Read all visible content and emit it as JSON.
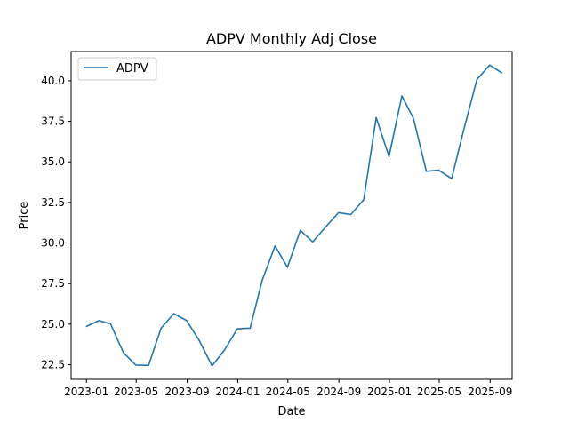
{
  "chart_data": {
    "type": "line",
    "title": "ADPV Monthly Adj Close",
    "xlabel": "Date",
    "ylabel": "Price",
    "legend_position": "top-left",
    "grid": false,
    "line_color": "#1f77b4",
    "x_ticks": [
      "2023-01",
      "2023-05",
      "2023-09",
      "2024-01",
      "2024-05",
      "2024-09",
      "2025-01",
      "2025-05",
      "2025-09"
    ],
    "y_ticks": [
      "22.5",
      "25.0",
      "27.5",
      "30.0",
      "32.5",
      "35.0",
      "37.5",
      "40.0"
    ],
    "ylim": [
      21.6,
      41.8
    ],
    "xlim": [
      "2022-11-25",
      "2025-10-24"
    ],
    "series": [
      {
        "name": "ADPV",
        "x": [
          "2022-12-31",
          "2023-01-31",
          "2023-02-28",
          "2023-03-31",
          "2023-04-30",
          "2023-05-31",
          "2023-06-30",
          "2023-07-31",
          "2023-08-31",
          "2023-09-30",
          "2023-10-31",
          "2023-11-30",
          "2023-12-31",
          "2024-01-31",
          "2024-02-29",
          "2024-03-31",
          "2024-04-30",
          "2024-05-31",
          "2024-06-30",
          "2024-07-31",
          "2024-08-31",
          "2024-09-30",
          "2024-10-31",
          "2024-11-30",
          "2024-12-31",
          "2025-01-31",
          "2025-02-28",
          "2025-03-31",
          "2025-04-30",
          "2025-05-31",
          "2025-06-30",
          "2025-07-31",
          "2025-08-31",
          "2025-09-30"
        ],
        "values": [
          24.85,
          25.22,
          25.03,
          23.25,
          22.48,
          22.46,
          24.75,
          25.65,
          25.22,
          24.0,
          22.43,
          23.4,
          24.71,
          24.76,
          27.7,
          29.82,
          28.51,
          30.78,
          30.07,
          30.99,
          31.87,
          31.76,
          32.67,
          37.73,
          35.33,
          39.07,
          37.67,
          34.42,
          34.49,
          33.96,
          37.05,
          40.08,
          40.97,
          40.47
        ]
      }
    ]
  }
}
